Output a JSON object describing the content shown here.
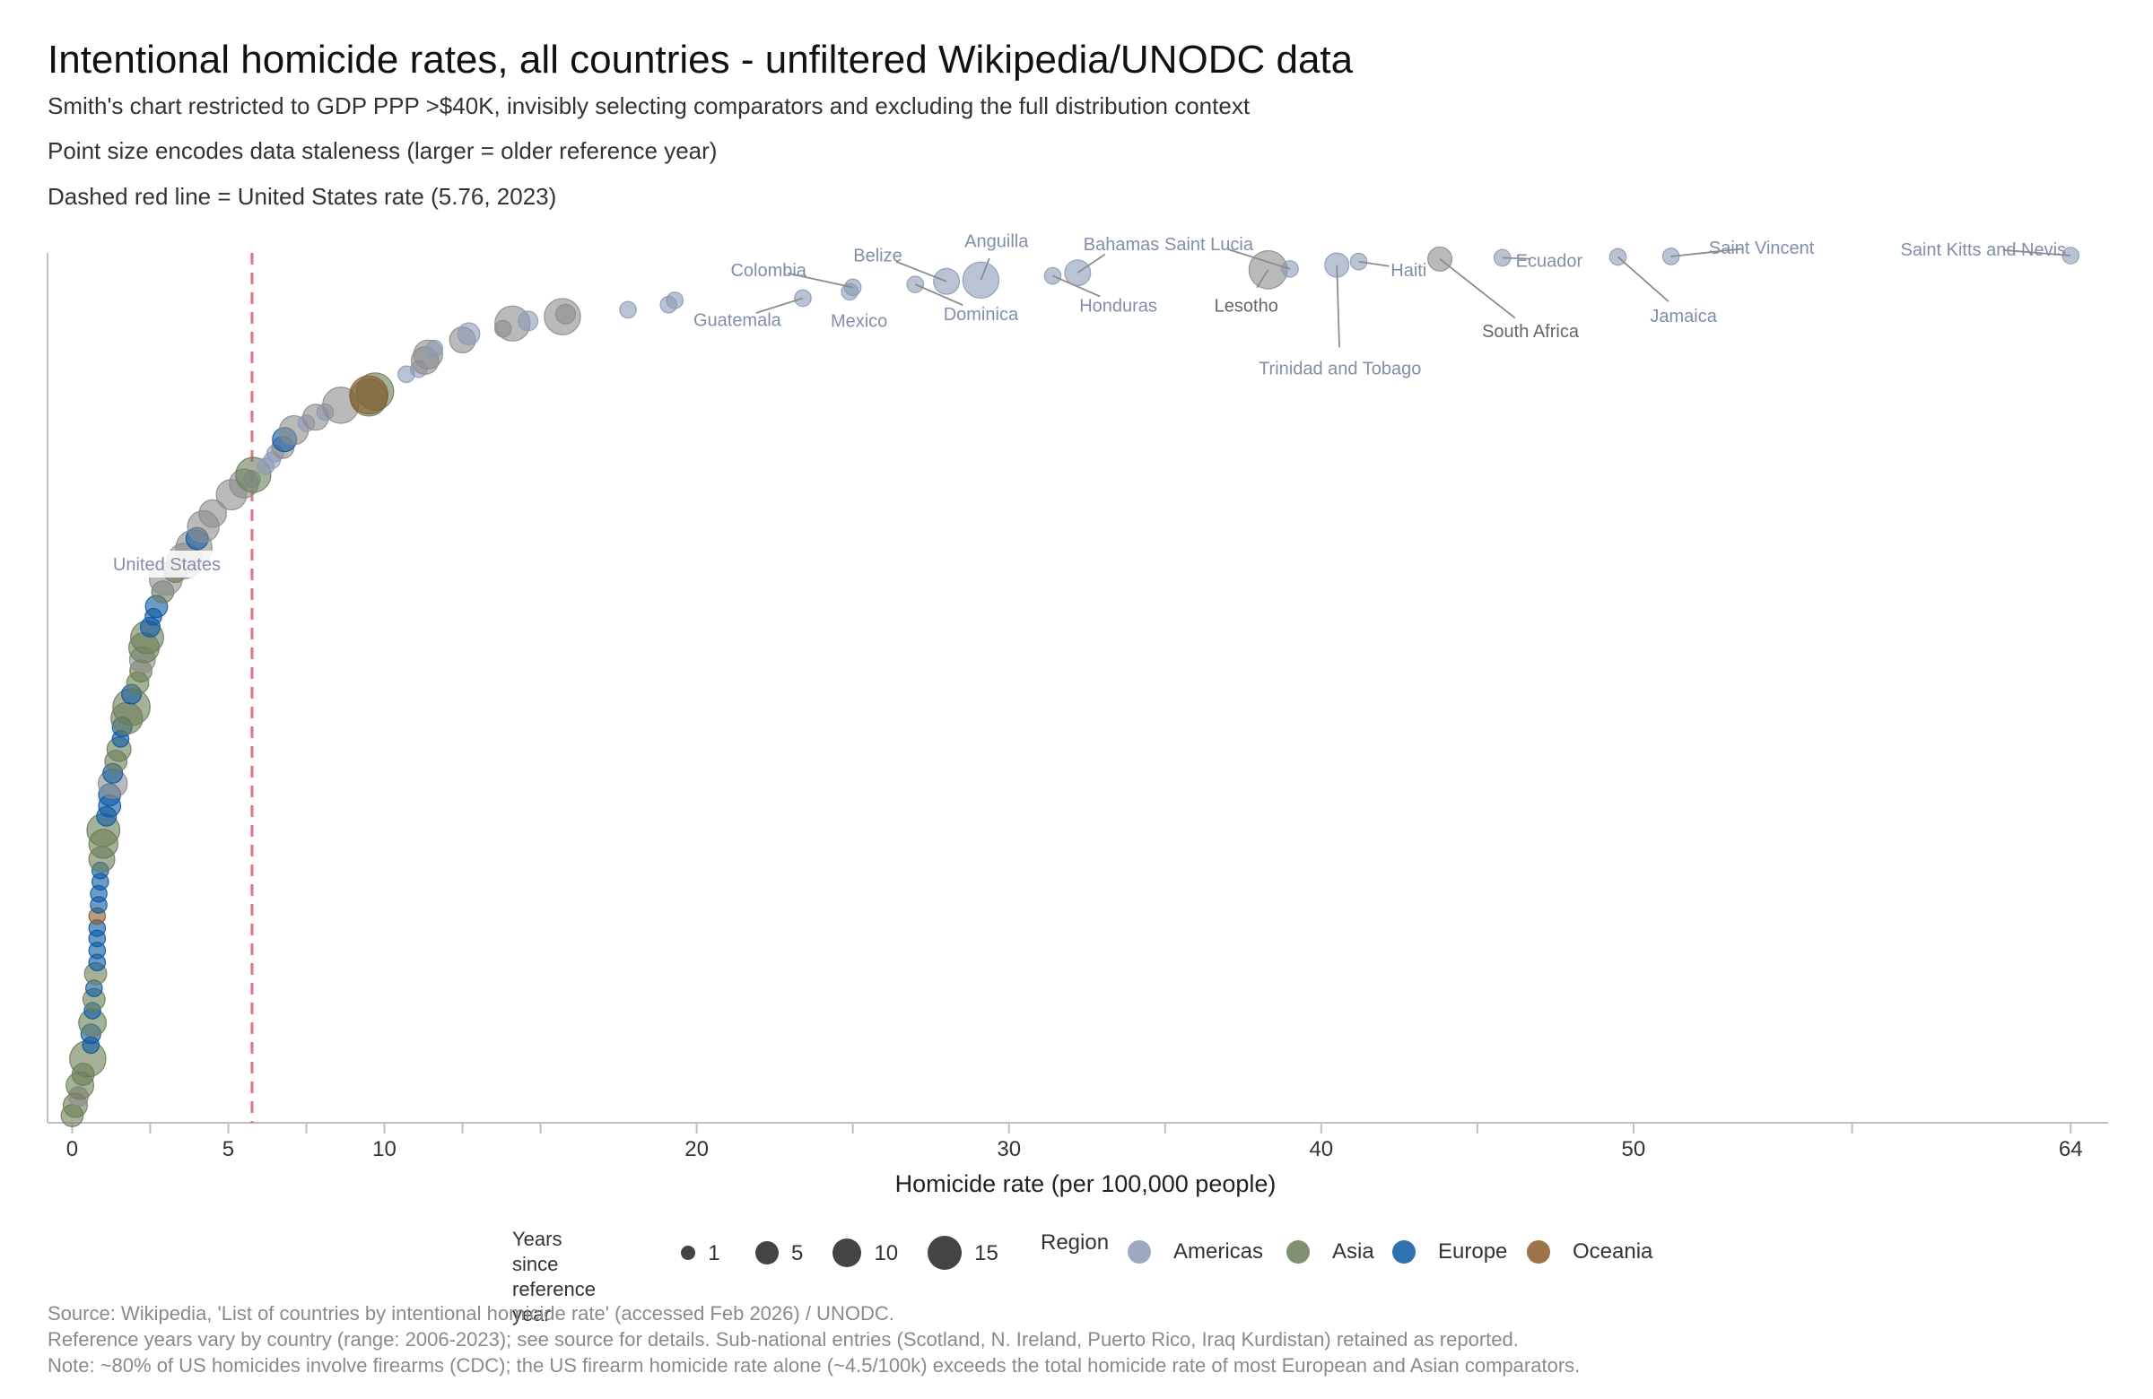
{
  "title": "Intentional homicide rates, all countries - unfiltered Wikipedia/UNODC data",
  "subtitles": [
    "Smith's chart restricted to GDP PPP >$40K, invisibly selecting comparators and excluding the full distribution context",
    "Point size encodes data staleness (larger = older reference year)",
    "Dashed red line = United States rate (5.76, 2023)"
  ],
  "footnotes": [
    "Source: Wikipedia, 'List of countries by intentional homicide rate' (accessed Feb 2026) / UNODC.",
    "Reference years vary by country (range: 2006-2023); see source for details. Sub-national entries (Scotland, N. Ireland, Puerto Rico, Iraq Kurdistan) retained as reported.",
    "Note: ~80% of US homicides involve firearms (CDC); the US firearm homicide rate alone (~4.5/100k) exceeds the total homicide rate of most European and Asian comparators."
  ],
  "colors": {
    "Americas": "#8a9bb5",
    "Asia": "#6b7d57",
    "Europe": "#0c58a3",
    "Oceania": "#8b5a2b",
    "Other": "#8c8c8c",
    "reference": "#e5737f",
    "axis": "#bfbfbf"
  },
  "legend": {
    "size_title": [
      "Years since",
      "reference year"
    ],
    "size_items": [
      {
        "label": "1",
        "years": 1
      },
      {
        "label": "5",
        "years": 5
      },
      {
        "label": "10",
        "years": 10
      },
      {
        "label": "15",
        "years": 15
      }
    ],
    "region_title": "Region",
    "region_items": [
      "Americas",
      "Asia",
      "Europe",
      "Oceania"
    ]
  },
  "chart_data": {
    "type": "scatter",
    "xlabel": "Homicide rate (per 100,000 people)",
    "ylabel": "",
    "xlim": [
      -0.3,
      65.2
    ],
    "ylim": [
      0,
      1
    ],
    "y_meaning": "rank of country sorted by homicide rate (0 = lowest, 1 = highest)",
    "x_ticks": [
      0,
      5,
      10,
      20,
      30,
      40,
      50,
      64
    ],
    "x_minor_ticks": [
      2.5,
      7.5,
      12.5,
      15,
      25,
      35,
      45,
      57
    ],
    "reference_line": {
      "x": 5.76,
      "label": "United States",
      "year": 2023
    },
    "point_series": [
      {
        "x": 0.0,
        "y": 0.0,
        "r": "Asia",
        "yrs": 3
      },
      {
        "x": 0.1,
        "y": 0.012,
        "r": "Asia",
        "yrs": 4
      },
      {
        "x": 0.2,
        "y": 0.022,
        "r": "Other",
        "yrs": 2
      },
      {
        "x": 0.25,
        "y": 0.035,
        "r": "Asia",
        "yrs": 6
      },
      {
        "x": 0.35,
        "y": 0.048,
        "r": "Asia",
        "yrs": 3
      },
      {
        "x": 0.5,
        "y": 0.066,
        "r": "Asia",
        "yrs": 13
      },
      {
        "x": 0.6,
        "y": 0.082,
        "r": "Europe",
        "yrs": 1
      },
      {
        "x": 0.6,
        "y": 0.095,
        "r": "Europe",
        "yrs": 2
      },
      {
        "x": 0.65,
        "y": 0.108,
        "r": "Asia",
        "yrs": 6
      },
      {
        "x": 0.65,
        "y": 0.122,
        "r": "Europe",
        "yrs": 1
      },
      {
        "x": 0.7,
        "y": 0.135,
        "r": "Asia",
        "yrs": 3
      },
      {
        "x": 0.7,
        "y": 0.148,
        "r": "Europe",
        "yrs": 1
      },
      {
        "x": 0.75,
        "y": 0.165,
        "r": "Asia",
        "yrs": 3
      },
      {
        "x": 0.8,
        "y": 0.178,
        "r": "Europe",
        "yrs": 1
      },
      {
        "x": 0.8,
        "y": 0.192,
        "r": "Europe",
        "yrs": 1
      },
      {
        "x": 0.8,
        "y": 0.206,
        "r": "Europe",
        "yrs": 1
      },
      {
        "x": 0.8,
        "y": 0.218,
        "r": "Europe",
        "yrs": 1
      },
      {
        "x": 0.8,
        "y": 0.232,
        "r": "Oceania",
        "yrs": 1
      },
      {
        "x": 0.85,
        "y": 0.245,
        "r": "Europe",
        "yrs": 1
      },
      {
        "x": 0.85,
        "y": 0.258,
        "r": "Europe",
        "yrs": 1
      },
      {
        "x": 0.9,
        "y": 0.272,
        "r": "Europe",
        "yrs": 1
      },
      {
        "x": 0.9,
        "y": 0.285,
        "r": "Europe",
        "yrs": 1
      },
      {
        "x": 0.95,
        "y": 0.298,
        "r": "Asia",
        "yrs": 5
      },
      {
        "x": 1.0,
        "y": 0.316,
        "r": "Asia",
        "yrs": 7
      },
      {
        "x": 1.0,
        "y": 0.332,
        "r": "Asia",
        "yrs": 10
      },
      {
        "x": 1.1,
        "y": 0.348,
        "r": "Europe",
        "yrs": 2
      },
      {
        "x": 1.2,
        "y": 0.36,
        "r": "Europe",
        "yrs": 3
      },
      {
        "x": 1.2,
        "y": 0.373,
        "r": "Europe",
        "yrs": 3
      },
      {
        "x": 1.3,
        "y": 0.386,
        "r": "Other",
        "yrs": 7
      },
      {
        "x": 1.3,
        "y": 0.398,
        "r": "Europe",
        "yrs": 2
      },
      {
        "x": 1.4,
        "y": 0.412,
        "r": "Asia",
        "yrs": 3
      },
      {
        "x": 1.5,
        "y": 0.426,
        "r": "Asia",
        "yrs": 4
      },
      {
        "x": 1.55,
        "y": 0.438,
        "r": "Europe",
        "yrs": 1
      },
      {
        "x": 1.6,
        "y": 0.452,
        "r": "Europe",
        "yrs": 2
      },
      {
        "x": 1.75,
        "y": 0.462,
        "r": "Asia",
        "yrs": 9
      },
      {
        "x": 1.9,
        "y": 0.475,
        "r": "Asia",
        "yrs": 14
      },
      {
        "x": 1.9,
        "y": 0.49,
        "r": "Europe",
        "yrs": 2
      },
      {
        "x": 2.1,
        "y": 0.503,
        "r": "Asia",
        "yrs": 3
      },
      {
        "x": 2.2,
        "y": 0.517,
        "r": "Asia",
        "yrs": 3
      },
      {
        "x": 2.25,
        "y": 0.53,
        "r": "Other",
        "yrs": 5
      },
      {
        "x": 2.3,
        "y": 0.544,
        "r": "Asia",
        "yrs": 8
      },
      {
        "x": 2.4,
        "y": 0.556,
        "r": "Asia",
        "yrs": 10
      },
      {
        "x": 2.5,
        "y": 0.568,
        "r": "Europe",
        "yrs": 2
      },
      {
        "x": 2.6,
        "y": 0.58,
        "r": "Europe",
        "yrs": 1
      },
      {
        "x": 2.7,
        "y": 0.592,
        "r": "Europe",
        "yrs": 3
      },
      {
        "x": 2.9,
        "y": 0.609,
        "r": "Asia",
        "yrs": 3
      },
      {
        "x": 3.0,
        "y": 0.624,
        "r": "Other",
        "yrs": 10
      },
      {
        "x": 3.3,
        "y": 0.634,
        "r": "Asia",
        "yrs": 4
      },
      {
        "x": 3.6,
        "y": 0.645,
        "r": "Other",
        "yrs": 12
      },
      {
        "x": 3.9,
        "y": 0.66,
        "r": "Other",
        "yrs": 13
      },
      {
        "x": 4.0,
        "y": 0.671,
        "r": "Europe",
        "yrs": 3
      },
      {
        "x": 4.2,
        "y": 0.685,
        "r": "Other",
        "yrs": 9
      },
      {
        "x": 4.5,
        "y": 0.7,
        "r": "Other",
        "yrs": 6
      },
      {
        "x": 5.1,
        "y": 0.722,
        "r": "Other",
        "yrs": 8
      },
      {
        "x": 5.5,
        "y": 0.735,
        "r": "Other",
        "yrs": 7
      },
      {
        "x": 5.76,
        "y": 0.74,
        "r": "Americas",
        "yrs": 1
      },
      {
        "x": 5.8,
        "y": 0.745,
        "r": "Asia",
        "yrs": 12
      },
      {
        "x": 6.2,
        "y": 0.755,
        "r": "Americas",
        "yrs": 1
      },
      {
        "x": 6.4,
        "y": 0.762,
        "r": "Americas",
        "yrs": 1
      },
      {
        "x": 6.5,
        "y": 0.77,
        "r": "Americas",
        "yrs": 1
      },
      {
        "x": 6.75,
        "y": 0.777,
        "r": "Other",
        "yrs": 3
      },
      {
        "x": 6.8,
        "y": 0.786,
        "r": "Europe",
        "yrs": 4
      },
      {
        "x": 7.1,
        "y": 0.797,
        "r": "Other",
        "yrs": 7
      },
      {
        "x": 7.5,
        "y": 0.805,
        "r": "Americas",
        "yrs": 1
      },
      {
        "x": 7.8,
        "y": 0.812,
        "r": "Other",
        "yrs": 5
      },
      {
        "x": 8.1,
        "y": 0.818,
        "r": "Americas",
        "yrs": 1
      },
      {
        "x": 8.6,
        "y": 0.826,
        "r": "Other",
        "yrs": 13
      },
      {
        "x": 9.5,
        "y": 0.835,
        "r": "Asia",
        "yrs": 14
      },
      {
        "x": 9.7,
        "y": 0.842,
        "r": "Asia",
        "yrs": 14
      },
      {
        "x": 9.5,
        "y": 0.838,
        "r": "Oceania",
        "yrs": 15
      },
      {
        "x": 10.7,
        "y": 0.862,
        "r": "Americas",
        "yrs": 1
      },
      {
        "x": 11.1,
        "y": 0.868,
        "r": "Americas",
        "yrs": 1
      },
      {
        "x": 11.3,
        "y": 0.878,
        "r": "Other",
        "yrs": 6
      },
      {
        "x": 11.4,
        "y": 0.885,
        "r": "Other",
        "yrs": 7
      },
      {
        "x": 11.6,
        "y": 0.892,
        "r": "Americas",
        "yrs": 1
      },
      {
        "x": 12.5,
        "y": 0.902,
        "r": "Other",
        "yrs": 5
      },
      {
        "x": 12.7,
        "y": 0.909,
        "r": "Americas",
        "yrs": 3
      },
      {
        "x": 13.8,
        "y": 0.915,
        "r": "Other",
        "yrs": 1
      },
      {
        "x": 14.1,
        "y": 0.921,
        "r": "Other",
        "yrs": 12
      },
      {
        "x": 14.6,
        "y": 0.924,
        "r": "Americas",
        "yrs": 2
      },
      {
        "x": 15.7,
        "y": 0.929,
        "r": "Other",
        "yrs": 13
      },
      {
        "x": 15.8,
        "y": 0.932,
        "r": "Other",
        "yrs": 2
      },
      {
        "x": 17.8,
        "y": 0.937,
        "r": "Americas",
        "yrs": 1
      },
      {
        "x": 19.1,
        "y": 0.943,
        "r": "Americas",
        "yrs": 1
      },
      {
        "x": 19.3,
        "y": 0.948,
        "r": "Americas",
        "yrs": 1
      }
    ],
    "labeled_points": [
      {
        "name": "Guatemala",
        "x": 23.4,
        "y": 0.9505,
        "r": "Americas",
        "yrs": 1,
        "lx": 21.3,
        "ly": 0.918,
        "a": "middle"
      },
      {
        "name": "Mexico",
        "x": 24.9,
        "y": 0.958,
        "r": "Americas",
        "yrs": 1,
        "lx": 25.2,
        "ly": 0.917,
        "a": "middle"
      },
      {
        "name": "Colombia",
        "x": 25.0,
        "y": 0.963,
        "r": "Americas",
        "yrs": 1,
        "lx": 22.3,
        "ly": 0.976,
        "a": "middle"
      },
      {
        "name": "Dominica",
        "x": 27.0,
        "y": 0.9665,
        "r": "Americas",
        "yrs": 1,
        "lx": 29.1,
        "ly": 0.925,
        "a": "middle"
      },
      {
        "name": "Belize",
        "x": 28.0,
        "y": 0.97,
        "r": "Americas",
        "yrs": 5,
        "lx": 25.8,
        "ly": 0.993,
        "a": "middle"
      },
      {
        "name": "Anguilla",
        "x": 29.1,
        "y": 0.9715,
        "r": "Americas",
        "yrs": 13,
        "lx": 29.6,
        "ly": 1.01,
        "a": "middle"
      },
      {
        "name": "Honduras",
        "x": 31.4,
        "y": 0.9765,
        "r": "Americas",
        "yrs": 1,
        "lx": 33.5,
        "ly": 0.935,
        "a": "middle"
      },
      {
        "name": "Bahamas",
        "x": 32.2,
        "y": 0.98,
        "r": "Americas",
        "yrs": 5,
        "lx": 33.6,
        "ly": 1.006,
        "a": "middle"
      },
      {
        "name": "Lesotho",
        "x": 38.3,
        "y": 0.9835,
        "r": "Other",
        "yrs": 15,
        "lx": 37.6,
        "ly": 0.935,
        "a": "middle"
      },
      {
        "name": "Saint Lucia",
        "x": 39.0,
        "y": 0.9845,
        "r": "Americas",
        "yrs": 1,
        "lx": 36.4,
        "ly": 1.006,
        "a": "middle"
      },
      {
        "name": "Trinidad and Tobago",
        "x": 40.5,
        "y": 0.989,
        "r": "Americas",
        "yrs": 4,
        "lx": 40.6,
        "ly": 0.862,
        "a": "middle"
      },
      {
        "name": "Haiti",
        "x": 41.2,
        "y": 0.993,
        "r": "Americas",
        "yrs": 1,
        "lx": 42.8,
        "ly": 0.976,
        "a": "middle"
      },
      {
        "name": "South Africa",
        "x": 43.8,
        "y": 0.996,
        "r": "Other",
        "yrs": 4,
        "lx": 46.7,
        "ly": 0.905,
        "a": "middle"
      },
      {
        "name": "Ecuador",
        "x": 45.8,
        "y": 0.9975,
        "r": "Americas",
        "yrs": 1,
        "lx": 47.3,
        "ly": 0.987,
        "a": "middle"
      },
      {
        "name": "Jamaica",
        "x": 49.5,
        "y": 0.9985,
        "r": "Americas",
        "yrs": 1,
        "lx": 51.6,
        "ly": 0.923,
        "a": "middle"
      },
      {
        "name": "Saint Vincent",
        "x": 51.2,
        "y": 0.999,
        "r": "Americas",
        "yrs": 1,
        "lx": 54.1,
        "ly": 1.002,
        "a": "middle"
      },
      {
        "name": "Saint Kitts and Nevis",
        "x": 64.0,
        "y": 1.0,
        "r": "Americas",
        "yrs": 1,
        "lx": 61.2,
        "ly": 1.0,
        "a": "middle"
      }
    ]
  }
}
